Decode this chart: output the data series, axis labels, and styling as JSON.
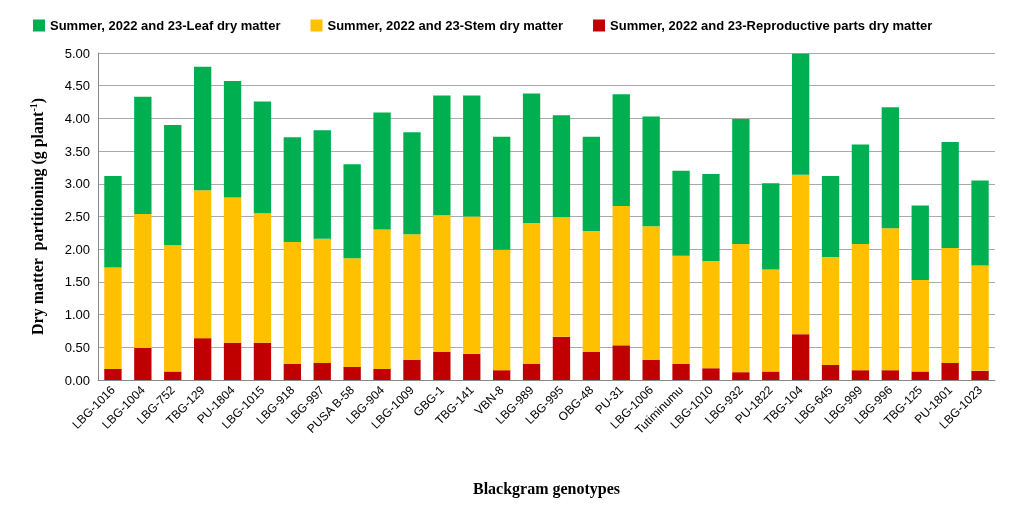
{
  "chart_data": {
    "type": "bar",
    "stacked": true,
    "xlabel": "Blackgram genotypes",
    "ylabel": "Dry matter  partitioning (g plant$^{-1}$)",
    "categories": [
      "LBG-1016",
      "LBG-1004",
      "LBG-752",
      "TBG-129",
      "PU-1804",
      "LBG-1015",
      "LBG-918",
      "LBG-997",
      "PUSA B-58",
      "LBG-904",
      "LBG-1009",
      "GBG-1",
      "TBG-141",
      "VBN-8",
      "LBG-989",
      "LBG-995",
      "OBG-48",
      "PU-31",
      "LBG-1006",
      "Tutiminumu",
      "LBG-1010",
      "LBG-932",
      "PU-1822",
      "TBG-104",
      "LBG-645",
      "LBG-999",
      "LBG-996",
      "TBG-125",
      "PU-1801",
      "LBG-1023"
    ],
    "series": [
      {
        "name": "Summer, 2022 and 23-Reproductive parts dry matter",
        "color": "#c00000",
        "values": [
          0.17,
          0.49,
          0.13,
          0.64,
          0.57,
          0.57,
          0.25,
          0.26,
          0.2,
          0.17,
          0.31,
          0.43,
          0.4,
          0.15,
          0.25,
          0.66,
          0.43,
          0.53,
          0.31,
          0.25,
          0.18,
          0.12,
          0.13,
          0.7,
          0.23,
          0.15,
          0.15,
          0.13,
          0.26,
          0.14
        ]
      },
      {
        "name": "Summer, 2022 and 23-Stem dry matter",
        "color": "#ffc000",
        "values": [
          1.55,
          2.05,
          1.93,
          2.26,
          2.22,
          1.98,
          1.86,
          1.9,
          1.66,
          2.13,
          1.92,
          2.09,
          2.1,
          1.84,
          2.15,
          1.83,
          1.85,
          2.13,
          2.04,
          1.65,
          1.64,
          1.96,
          1.56,
          2.44,
          1.65,
          1.93,
          2.17,
          1.4,
          1.76,
          1.61
        ]
      },
      {
        "name": "Summer, 2022 and 23-Leaf dry matter",
        "color": "#00b050",
        "values": [
          1.4,
          1.79,
          1.84,
          1.89,
          1.78,
          1.71,
          1.6,
          1.66,
          1.44,
          1.79,
          1.56,
          1.83,
          1.85,
          1.73,
          1.98,
          1.56,
          1.44,
          1.71,
          1.68,
          1.3,
          1.33,
          1.91,
          1.32,
          1.85,
          1.24,
          1.52,
          1.85,
          1.14,
          1.62,
          1.3
        ]
      }
    ],
    "ylim": [
      0,
      5
    ],
    "yticks": [
      {
        "value": 0,
        "label": "0.00"
      },
      {
        "value": 0.5,
        "label": "0.50"
      },
      {
        "value": 1,
        "label": "1.00"
      },
      {
        "value": 1.5,
        "label": "1.50"
      },
      {
        "value": 2,
        "label": "2.00"
      },
      {
        "value": 2.5,
        "label": "2.50"
      },
      {
        "value": 3,
        "label": "3.00"
      },
      {
        "value": 3.5,
        "label": "3.50"
      },
      {
        "value": 4,
        "label": "4.00"
      },
      {
        "value": 4.5,
        "label": "4.50"
      },
      {
        "value": 5,
        "label": "5.00"
      }
    ],
    "grid": "y",
    "legend": "top"
  }
}
